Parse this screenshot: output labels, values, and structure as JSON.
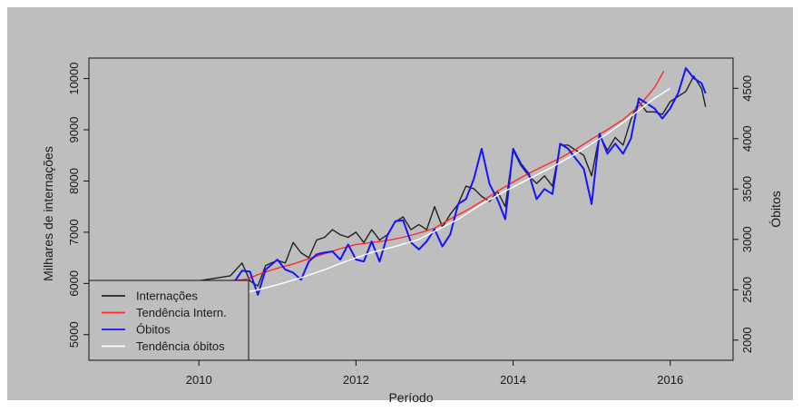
{
  "chart_data": {
    "type": "line",
    "title": "",
    "xlabel": "Período",
    "ylabel_left": "Milhares de internações",
    "ylabel_right": "Óbitos",
    "xlim": [
      2008.6,
      2016.8
    ],
    "ylim_left": [
      4500,
      10400
    ],
    "ylim_right": [
      1800,
      4800
    ],
    "x_ticks": [
      2010,
      2012,
      2014,
      2016
    ],
    "x_tick_labels": [
      "2010",
      "2012",
      "2014",
      "2016"
    ],
    "y_left_ticks": [
      5000,
      6000,
      7000,
      8000,
      9000,
      10000
    ],
    "y_left_tick_labels": [
      "5000",
      "6000",
      "7000",
      "8000",
      "9000",
      "10000"
    ],
    "y_right_ticks": [
      2000,
      2500,
      3000,
      3500,
      4000,
      4500
    ],
    "y_right_tick_labels": [
      "2000",
      "2500",
      "3000",
      "3500",
      "4000",
      "4500"
    ],
    "grid": false,
    "legend_position": "bottom-left",
    "legend": [
      {
        "label": "Internações",
        "color": "#222222"
      },
      {
        "label": "Tendência Intern.",
        "color": "#ff2a2a"
      },
      {
        "label": "Óbitos",
        "color": "#1414ff"
      },
      {
        "label": "Tendência óbitos",
        "color": "#ffffff"
      }
    ],
    "series": [
      {
        "name": "Internações",
        "axis": "left",
        "color": "#222222",
        "x": [
          2009.0,
          2009.2,
          2009.4,
          2009.6,
          2009.8,
          2010.0,
          2010.2,
          2010.4,
          2010.55,
          2010.65,
          2010.75,
          2010.85,
          2011.0,
          2011.1,
          2011.2,
          2011.3,
          2011.4,
          2011.5,
          2011.6,
          2011.7,
          2011.8,
          2011.9,
          2012.0,
          2012.1,
          2012.2,
          2012.3,
          2012.4,
          2012.5,
          2012.6,
          2012.7,
          2012.8,
          2012.9,
          2013.0,
          2013.1,
          2013.2,
          2013.3,
          2013.4,
          2013.5,
          2013.6,
          2013.7,
          2013.8,
          2013.9,
          2014.0,
          2014.1,
          2014.2,
          2014.3,
          2014.4,
          2014.5,
          2014.6,
          2014.7,
          2014.8,
          2014.9,
          2015.0,
          2015.1,
          2015.2,
          2015.3,
          2015.4,
          2015.5,
          2015.6,
          2015.7,
          2015.8,
          2015.9,
          2016.0,
          2016.1,
          2016.2,
          2016.3,
          2016.4,
          2016.45
        ],
        "y": [
          5800,
          5850,
          5900,
          5950,
          6000,
          6050,
          6100,
          6150,
          6400,
          6050,
          5950,
          6350,
          6450,
          6400,
          6800,
          6600,
          6500,
          6850,
          6900,
          7050,
          6950,
          6900,
          7000,
          6800,
          7050,
          6850,
          6950,
          7200,
          7300,
          7050,
          7150,
          7050,
          7500,
          7100,
          7350,
          7550,
          7900,
          7850,
          7700,
          7600,
          7800,
          7500,
          8600,
          8300,
          8100,
          7950,
          8100,
          7900,
          8700,
          8700,
          8600,
          8500,
          8100,
          8900,
          8600,
          8850,
          8700,
          9200,
          9550,
          9350,
          9350,
          9300,
          9550,
          9650,
          9750,
          10050,
          9800,
          9450
        ]
      },
      {
        "name": "Tendência Intern.",
        "axis": "left",
        "color": "#ff2a2a",
        "x": [
          2009.0,
          2009.5,
          2010.0,
          2010.3,
          2010.6,
          2010.8,
          2011.0,
          2011.2,
          2011.4,
          2011.6,
          2011.8,
          2012.0,
          2012.2,
          2012.4,
          2012.6,
          2012.8,
          2013.0,
          2013.2,
          2013.4,
          2013.6,
          2013.8,
          2014.0,
          2014.2,
          2014.4,
          2014.6,
          2014.8,
          2015.0,
          2015.2,
          2015.4,
          2015.6,
          2015.8,
          2015.92
        ],
        "y": [
          5850,
          5900,
          5980,
          6040,
          6080,
          6200,
          6300,
          6380,
          6480,
          6580,
          6680,
          6760,
          6800,
          6840,
          6900,
          6980,
          7080,
          7260,
          7420,
          7600,
          7800,
          7980,
          8150,
          8300,
          8450,
          8620,
          8820,
          9000,
          9200,
          9460,
          9820,
          10150
        ]
      },
      {
        "name": "Óbitos",
        "axis": "right",
        "color": "#1414ff",
        "x": [
          2009.0,
          2009.2,
          2009.4,
          2009.6,
          2009.8,
          2010.0,
          2010.2,
          2010.4,
          2010.55,
          2010.65,
          2010.75,
          2010.85,
          2011.0,
          2011.1,
          2011.2,
          2011.3,
          2011.4,
          2011.5,
          2011.6,
          2011.7,
          2011.8,
          2011.9,
          2012.0,
          2012.1,
          2012.2,
          2012.3,
          2012.4,
          2012.5,
          2012.6,
          2012.7,
          2012.8,
          2012.9,
          2013.0,
          2013.1,
          2013.2,
          2013.3,
          2013.4,
          2013.5,
          2013.6,
          2013.7,
          2013.8,
          2013.9,
          2014.0,
          2014.1,
          2014.2,
          2014.3,
          2014.4,
          2014.5,
          2014.6,
          2014.7,
          2014.8,
          2014.9,
          2015.0,
          2015.1,
          2015.2,
          2015.3,
          2015.4,
          2015.5,
          2015.6,
          2015.7,
          2015.8,
          2015.9,
          2016.0,
          2016.1,
          2016.2,
          2016.3,
          2016.4,
          2016.45
        ],
        "y": [
          2350,
          2380,
          2400,
          2430,
          2450,
          2480,
          2500,
          2520,
          2690,
          2680,
          2450,
          2700,
          2800,
          2700,
          2670,
          2600,
          2780,
          2850,
          2870,
          2880,
          2800,
          2950,
          2800,
          2780,
          2980,
          2780,
          3040,
          3180,
          3190,
          2970,
          2900,
          2980,
          3100,
          2930,
          3050,
          3350,
          3400,
          3600,
          3900,
          3550,
          3400,
          3200,
          3900,
          3750,
          3650,
          3400,
          3500,
          3450,
          3950,
          3900,
          3800,
          3700,
          3350,
          4050,
          3850,
          3950,
          3850,
          4000,
          4400,
          4350,
          4300,
          4200,
          4300,
          4450,
          4700,
          4600,
          4550,
          4450
        ]
      },
      {
        "name": "Tendência óbitos",
        "axis": "right",
        "color": "#ffffff",
        "x": [
          2009.0,
          2009.5,
          2010.0,
          2010.4,
          2010.7,
          2011.0,
          2011.3,
          2011.6,
          2011.9,
          2012.2,
          2012.5,
          2012.8,
          2013.0,
          2013.3,
          2013.6,
          2013.9,
          2014.2,
          2014.5,
          2014.8,
          2015.0,
          2015.2,
          2015.4,
          2015.6,
          2015.8,
          2016.0
        ],
        "y": [
          2350,
          2390,
          2420,
          2450,
          2490,
          2550,
          2620,
          2700,
          2790,
          2870,
          2930,
          3000,
          3080,
          3200,
          3350,
          3480,
          3600,
          3720,
          3850,
          3950,
          4050,
          4160,
          4280,
          4400,
          4500
        ]
      }
    ]
  }
}
